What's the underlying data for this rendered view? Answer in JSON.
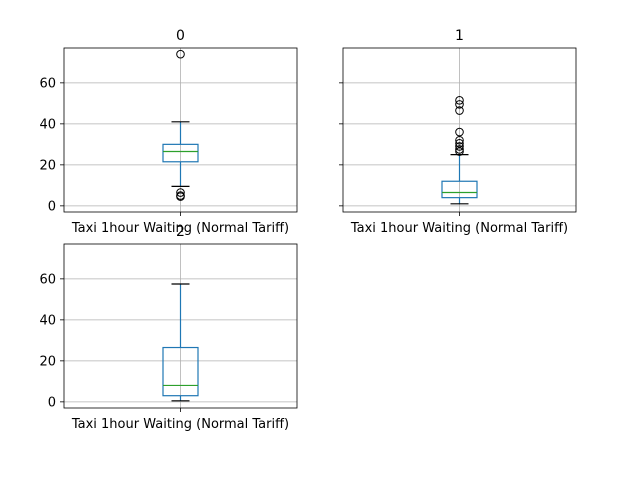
{
  "chart_data": [
    {
      "type": "box",
      "title": "0",
      "category": "Taxi 1hour Waiting (Normal Tariff)",
      "ylim": [
        -3,
        77
      ],
      "yticks": [
        0,
        20,
        40,
        60
      ],
      "grid": true,
      "box": {
        "whisker_low": 9.5,
        "q1": 21.5,
        "median": 26.5,
        "q3": 30.0,
        "whisker_high": 41.0
      },
      "outliers": [
        74.0,
        6.5,
        5.0,
        4.5
      ]
    },
    {
      "type": "box",
      "title": "1",
      "category": "Taxi 1hour Waiting (Normal Tariff)",
      "ylim": [
        -3,
        77
      ],
      "yticks": [
        0,
        20,
        40,
        60
      ],
      "grid": true,
      "box": {
        "whisker_low": 1.0,
        "q1": 4.0,
        "median": 6.5,
        "q3": 12.0,
        "whisker_high": 25.0
      },
      "outliers": [
        51.5,
        49.5,
        46.5,
        36.0,
        32.0,
        30.5,
        29.0,
        27.5,
        26.5
      ]
    },
    {
      "type": "box",
      "title": "2",
      "category": "Taxi 1hour Waiting (Normal Tariff)",
      "ylim": [
        -3,
        77
      ],
      "yticks": [
        0,
        20,
        40,
        60
      ],
      "grid": true,
      "box": {
        "whisker_low": 0.5,
        "q1": 3.0,
        "median": 8.0,
        "q3": 26.5,
        "whisker_high": 57.5
      },
      "outliers": []
    }
  ],
  "colors": {
    "box": "#1f77b4",
    "median": "#2ca02c",
    "grid": "#b0b0b0",
    "outlier": "#000000"
  }
}
